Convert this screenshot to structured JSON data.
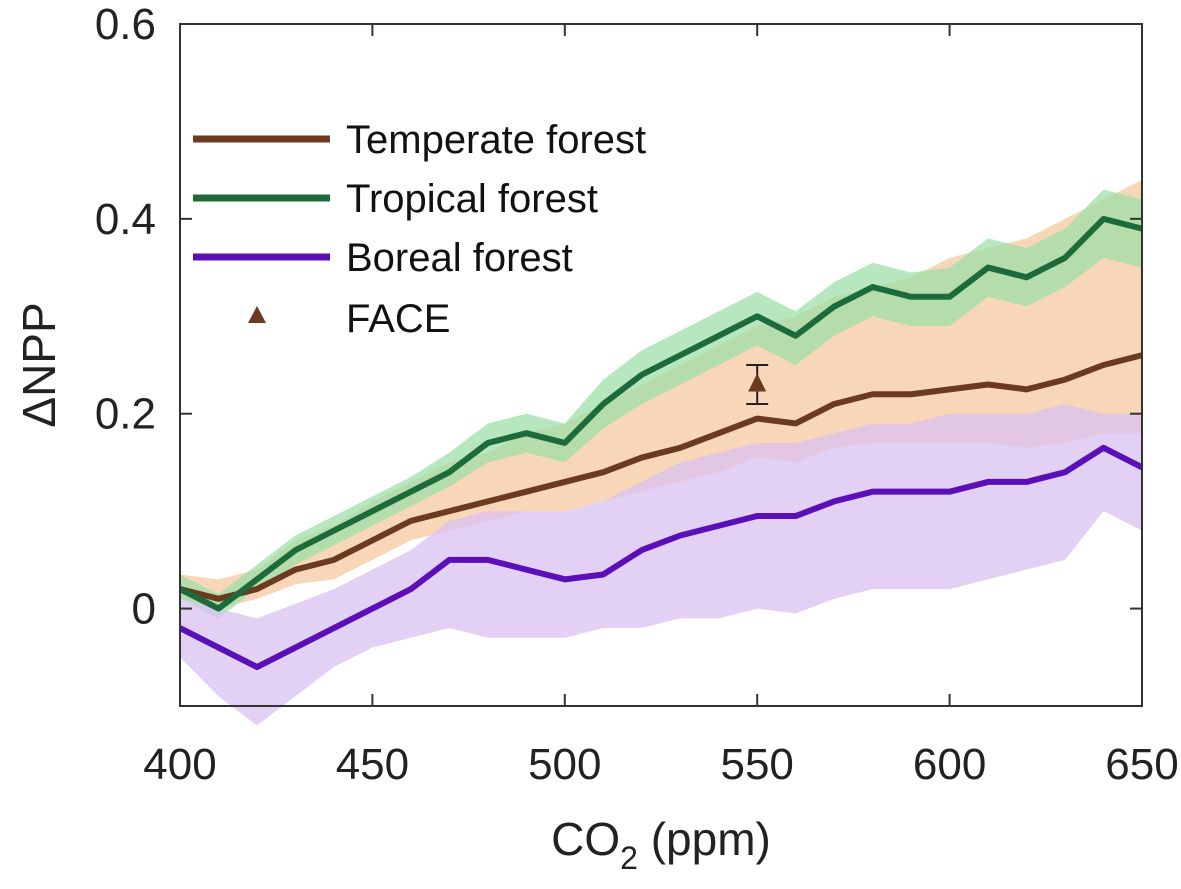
{
  "chart_data": {
    "type": "line",
    "title": "",
    "xlabel": {
      "main": "CO",
      "sub": "2",
      "rest": " (ppm)"
    },
    "ylabel": "ΔNPP",
    "xlim": [
      400,
      650
    ],
    "ylim": [
      -0.1,
      0.6
    ],
    "xticks": [
      "400",
      "450",
      "500",
      "550",
      "600",
      "650"
    ],
    "yticks": [
      "0",
      "0.2",
      "0.4",
      "0.6"
    ],
    "grid": false,
    "legend_position": "top-left",
    "x": [
      400,
      410,
      420,
      430,
      440,
      450,
      460,
      470,
      480,
      490,
      500,
      510,
      520,
      530,
      540,
      550,
      560,
      570,
      580,
      590,
      600,
      610,
      620,
      630,
      640,
      650
    ],
    "series": [
      {
        "name": "Temperate forest",
        "color": "#6b3a1f",
        "band_color": "#f6c9a0",
        "values": [
          0.02,
          0.01,
          0.02,
          0.04,
          0.05,
          0.07,
          0.09,
          0.1,
          0.11,
          0.12,
          0.13,
          0.14,
          0.155,
          0.165,
          0.18,
          0.195,
          0.19,
          0.21,
          0.22,
          0.22,
          0.225,
          0.23,
          0.225,
          0.235,
          0.25,
          0.26
        ],
        "lower": [
          0.01,
          0.0,
          0.01,
          0.025,
          0.03,
          0.05,
          0.07,
          0.08,
          0.09,
          0.1,
          0.1,
          0.11,
          0.12,
          0.13,
          0.14,
          0.155,
          0.15,
          0.165,
          0.17,
          0.17,
          0.17,
          0.17,
          0.165,
          0.17,
          0.18,
          0.18
        ],
        "upper": [
          0.035,
          0.03,
          0.04,
          0.07,
          0.085,
          0.11,
          0.13,
          0.15,
          0.16,
          0.18,
          0.19,
          0.21,
          0.23,
          0.25,
          0.27,
          0.29,
          0.3,
          0.32,
          0.33,
          0.34,
          0.36,
          0.37,
          0.38,
          0.4,
          0.42,
          0.44
        ]
      },
      {
        "name": "Tropical forest",
        "color": "#1d6b3a",
        "band_color": "#9fdfa8",
        "values": [
          0.02,
          0.0,
          0.03,
          0.06,
          0.08,
          0.1,
          0.12,
          0.14,
          0.17,
          0.18,
          0.17,
          0.21,
          0.24,
          0.26,
          0.28,
          0.3,
          0.28,
          0.31,
          0.33,
          0.32,
          0.32,
          0.35,
          0.34,
          0.36,
          0.4,
          0.39
        ],
        "lower": [
          0.01,
          -0.01,
          0.02,
          0.045,
          0.065,
          0.085,
          0.105,
          0.125,
          0.15,
          0.16,
          0.15,
          0.185,
          0.21,
          0.23,
          0.25,
          0.27,
          0.25,
          0.28,
          0.3,
          0.29,
          0.29,
          0.32,
          0.31,
          0.33,
          0.36,
          0.35
        ],
        "upper": [
          0.035,
          0.015,
          0.045,
          0.075,
          0.095,
          0.115,
          0.135,
          0.16,
          0.19,
          0.2,
          0.19,
          0.235,
          0.265,
          0.285,
          0.305,
          0.325,
          0.305,
          0.335,
          0.355,
          0.345,
          0.35,
          0.38,
          0.37,
          0.39,
          0.43,
          0.42
        ]
      },
      {
        "name": "Boreal forest",
        "color": "#5a0fb8",
        "band_color": "#d9c2f2",
        "values": [
          -0.02,
          -0.04,
          -0.06,
          -0.04,
          -0.02,
          0.0,
          0.02,
          0.05,
          0.05,
          0.04,
          0.03,
          0.035,
          0.06,
          0.075,
          0.085,
          0.095,
          0.095,
          0.11,
          0.12,
          0.12,
          0.12,
          0.13,
          0.13,
          0.14,
          0.165,
          0.145
        ],
        "lower": [
          -0.05,
          -0.09,
          -0.12,
          -0.09,
          -0.06,
          -0.04,
          -0.03,
          -0.02,
          -0.03,
          -0.03,
          -0.03,
          -0.02,
          -0.02,
          -0.01,
          -0.01,
          0.0,
          -0.005,
          0.01,
          0.02,
          0.02,
          0.02,
          0.03,
          0.04,
          0.05,
          0.1,
          0.08
        ],
        "upper": [
          0.01,
          0.0,
          -0.01,
          0.005,
          0.02,
          0.04,
          0.06,
          0.09,
          0.1,
          0.1,
          0.1,
          0.11,
          0.13,
          0.15,
          0.16,
          0.17,
          0.17,
          0.18,
          0.19,
          0.19,
          0.2,
          0.2,
          0.2,
          0.21,
          0.2,
          0.2
        ]
      }
    ],
    "markers": [
      {
        "name": "FACE",
        "color": "#6b3a1f",
        "x": 550,
        "y": 0.23,
        "err_low": 0.21,
        "err_high": 0.25
      }
    ]
  }
}
